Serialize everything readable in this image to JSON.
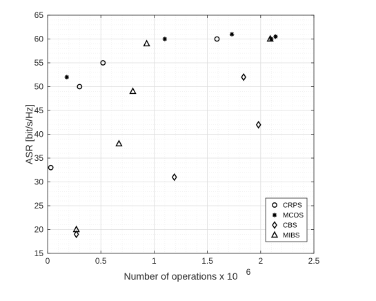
{
  "chart_data": {
    "type": "scatter",
    "title": "",
    "xlabel": "Number of operations x 10",
    "xlabel_exponent": "6",
    "ylabel": "ASR [bit/s/Hz]",
    "xlim": [
      0,
      2.5
    ],
    "ylim": [
      15,
      65
    ],
    "xticks": [
      "0",
      "0.5",
      "1",
      "1.5",
      "2",
      "2.5"
    ],
    "yticks": [
      "15",
      "20",
      "25",
      "30",
      "35",
      "40",
      "45",
      "50",
      "55",
      "60",
      "65"
    ],
    "grid": true,
    "minor_grid": true,
    "legend_position": "bottom-right",
    "series": [
      {
        "name": "CRPS",
        "marker": "circle",
        "points": [
          [
            0.03,
            33
          ],
          [
            0.3,
            50
          ],
          [
            0.52,
            55
          ],
          [
            1.59,
            60
          ]
        ]
      },
      {
        "name": "MCOS",
        "marker": "asterisk",
        "points": [
          [
            0.18,
            52
          ],
          [
            1.1,
            60
          ],
          [
            1.73,
            61
          ],
          [
            2.1,
            60
          ],
          [
            2.14,
            60.5
          ]
        ]
      },
      {
        "name": "CBS",
        "marker": "diamond",
        "points": [
          [
            0.27,
            19
          ],
          [
            1.19,
            31
          ],
          [
            1.84,
            52
          ],
          [
            1.98,
            42
          ]
        ]
      },
      {
        "name": "MIBS",
        "marker": "triangle",
        "points": [
          [
            0.27,
            20
          ],
          [
            0.67,
            38
          ],
          [
            0.8,
            49
          ],
          [
            0.93,
            59
          ],
          [
            2.09,
            60
          ]
        ]
      }
    ]
  }
}
